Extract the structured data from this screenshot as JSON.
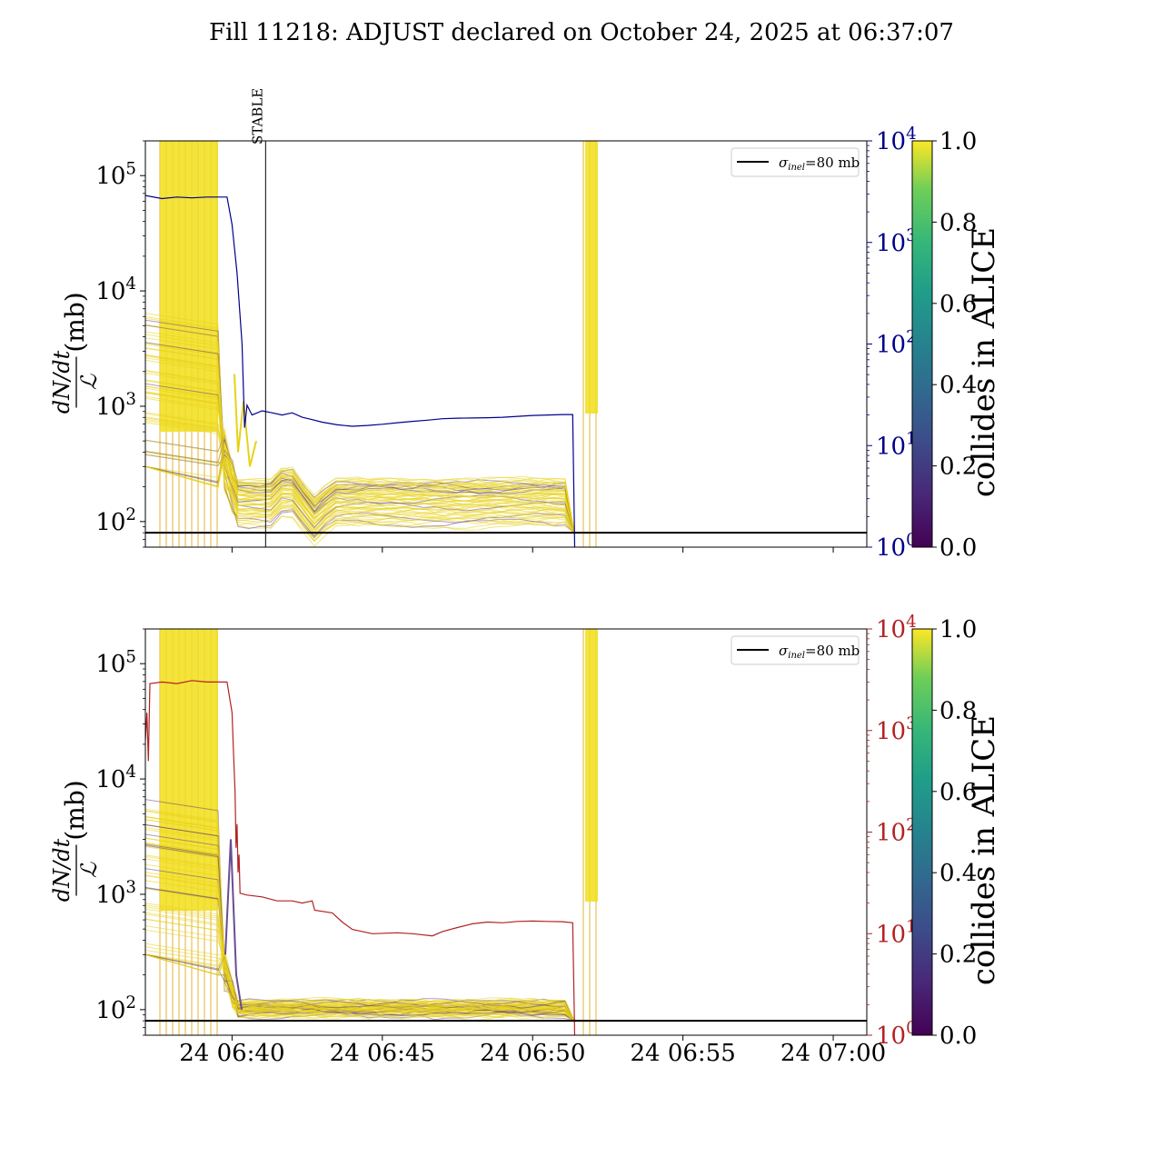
{
  "title": "Fill 11218: ADJUST declared on October 24, 2025 at 06:37:07",
  "chart_data": [
    {
      "type": "line",
      "panel": "top",
      "ylabel": "dN/dt / L (mb)",
      "ylabel_parts": {
        "num": "dN/dt",
        "den": "ℒ",
        "unit": "(mb)"
      },
      "yscale": "log",
      "ylim": [
        60,
        200000
      ],
      "yticks": [
        {
          "value": 100,
          "base": "10",
          "exp": "2"
        },
        {
          "value": 1000,
          "base": "10",
          "exp": "3"
        },
        {
          "value": 10000,
          "base": "10",
          "exp": "4"
        },
        {
          "value": 100000,
          "base": "10",
          "exp": "5"
        }
      ],
      "xlim": [
        "06:37:07",
        "07:01:07"
      ],
      "xticks": [],
      "right_axis": {
        "scale": "log",
        "ylim": [
          1,
          10000
        ],
        "color": "#00008b",
        "ticks": [
          {
            "value": 1,
            "base": "10",
            "exp": "0"
          },
          {
            "value": 10,
            "base": "10",
            "exp": "1"
          },
          {
            "value": 100,
            "base": "10",
            "exp": "2"
          },
          {
            "value": 1000,
            "base": "10",
            "exp": "3"
          },
          {
            "value": 10000,
            "base": "10",
            "exp": "4"
          }
        ]
      },
      "right_series": {
        "color": "#00008b",
        "points": [
          [
            "06:37:07",
            2900
          ],
          [
            "06:37:40",
            2700
          ],
          [
            "06:38:10",
            2800
          ],
          [
            "06:38:40",
            2750
          ],
          [
            "06:39:10",
            2800
          ],
          [
            "06:39:50",
            2800
          ],
          [
            "06:40:00",
            1500
          ],
          [
            "06:40:10",
            500
          ],
          [
            "06:40:20",
            100
          ],
          [
            "06:40:25",
            15
          ],
          [
            "06:40:30",
            25
          ],
          [
            "06:40:40",
            20
          ],
          [
            "06:41:00",
            22
          ],
          [
            "06:41:20",
            21
          ],
          [
            "06:41:40",
            20
          ],
          [
            "06:42:00",
            21
          ],
          [
            "06:42:20",
            19
          ],
          [
            "06:42:40",
            18
          ],
          [
            "06:43:00",
            17
          ],
          [
            "06:43:30",
            16
          ],
          [
            "06:44:00",
            15.5
          ],
          [
            "06:44:30",
            15.8
          ],
          [
            "06:45:00",
            16.2
          ],
          [
            "06:45:30",
            16.8
          ],
          [
            "06:46:00",
            17.3
          ],
          [
            "06:46:30",
            17.8
          ],
          [
            "06:47:00",
            18.4
          ],
          [
            "06:47:30",
            18.6
          ],
          [
            "06:48:00",
            18.7
          ],
          [
            "06:48:30",
            18.8
          ],
          [
            "06:49:00",
            19
          ],
          [
            "06:49:30",
            19.4
          ],
          [
            "06:50:00",
            19.8
          ],
          [
            "06:50:30",
            20
          ],
          [
            "06:51:00",
            20.2
          ],
          [
            "06:51:20",
            20.2
          ],
          [
            "06:51:24",
            1
          ]
        ]
      },
      "reference_line": {
        "label": "σinel=80 mb",
        "label_sigma": "σ",
        "label_sub": "inel",
        "label_rest": "=80 mb",
        "value": 80
      },
      "vline": {
        "label": "STABLE",
        "x": "06:41:07"
      },
      "colorbar": {
        "label": "collides in ALICE",
        "ticks": [
          "0.0",
          "0.2",
          "0.4",
          "0.6",
          "0.8",
          "1.0"
        ],
        "cmap": "viridis"
      },
      "legend": "top-right"
    },
    {
      "type": "line",
      "panel": "bottom",
      "ylabel": "dN/dt / L (mb)",
      "ylabel_parts": {
        "num": "dN/dt",
        "den": "ℒ",
        "unit": "(mb)"
      },
      "yscale": "log",
      "ylim": [
        60,
        200000
      ],
      "yticks": [
        {
          "value": 100,
          "base": "10",
          "exp": "2"
        },
        {
          "value": 1000,
          "base": "10",
          "exp": "3"
        },
        {
          "value": 10000,
          "base": "10",
          "exp": "4"
        },
        {
          "value": 100000,
          "base": "10",
          "exp": "5"
        }
      ],
      "xlim": [
        "06:37:07",
        "07:01:07"
      ],
      "xticks": [
        {
          "time": "06:40:00",
          "label": "24 06:40"
        },
        {
          "time": "06:45:00",
          "label": "24 06:45"
        },
        {
          "time": "06:50:00",
          "label": "24 06:50"
        },
        {
          "time": "06:55:00",
          "label": "24 06:55"
        },
        {
          "time": "07:00:00",
          "label": "24 07:00"
        }
      ],
      "right_axis": {
        "scale": "log",
        "ylim": [
          1,
          10000
        ],
        "color": "#b22222",
        "ticks": [
          {
            "value": 1,
            "base": "10",
            "exp": "0"
          },
          {
            "value": 10,
            "base": "10",
            "exp": "1"
          },
          {
            "value": 100,
            "base": "10",
            "exp": "2"
          },
          {
            "value": 1000,
            "base": "10",
            "exp": "3"
          },
          {
            "value": 10000,
            "base": "10",
            "exp": "4"
          }
        ]
      },
      "right_series": {
        "color": "#b22222",
        "points": [
          [
            "06:37:07",
            800
          ],
          [
            "06:37:10",
            1500
          ],
          [
            "06:37:13",
            500
          ],
          [
            "06:37:16",
            2900
          ],
          [
            "06:37:40",
            3000
          ],
          [
            "06:38:10",
            2900
          ],
          [
            "06:38:40",
            3100
          ],
          [
            "06:39:10",
            3000
          ],
          [
            "06:39:50",
            3000
          ],
          [
            "06:40:00",
            1500
          ],
          [
            "06:40:03",
            600
          ],
          [
            "06:40:06",
            250
          ],
          [
            "06:40:08",
            70
          ],
          [
            "06:40:10",
            120
          ],
          [
            "06:40:12",
            40
          ],
          [
            "06:40:14",
            60
          ],
          [
            "06:40:16",
            25
          ],
          [
            "06:40:30",
            24
          ],
          [
            "06:41:00",
            23
          ],
          [
            "06:41:30",
            21
          ],
          [
            "06:42:00",
            21
          ],
          [
            "06:42:20",
            20
          ],
          [
            "06:42:40",
            21
          ],
          [
            "06:42:45",
            17
          ],
          [
            "06:43:20",
            16
          ],
          [
            "06:43:40",
            13
          ],
          [
            "06:44:00",
            11
          ],
          [
            "06:44:40",
            10
          ],
          [
            "06:45:30",
            10.2
          ],
          [
            "06:46:00",
            10
          ],
          [
            "06:46:40",
            9.5
          ],
          [
            "06:47:00",
            10.5
          ],
          [
            "06:47:30",
            11.5
          ],
          [
            "06:48:00",
            12.5
          ],
          [
            "06:48:30",
            13
          ],
          [
            "06:49:00",
            12.8
          ],
          [
            "06:49:30",
            13.2
          ],
          [
            "06:50:00",
            13.3
          ],
          [
            "06:50:30",
            13.2
          ],
          [
            "06:51:00",
            13.1
          ],
          [
            "06:51:20",
            12.8
          ],
          [
            "06:51:24",
            1
          ]
        ]
      },
      "reference_line": {
        "label": "σinel=80 mb",
        "label_sigma": "σ",
        "label_sub": "inel",
        "label_rest": "=80 mb",
        "value": 80
      },
      "colorbar": {
        "label": "collides in ALICE",
        "ticks": [
          "0.0",
          "0.2",
          "0.4",
          "0.6",
          "0.8",
          "1.0"
        ],
        "cmap": "viridis"
      },
      "legend": "top-right"
    }
  ]
}
